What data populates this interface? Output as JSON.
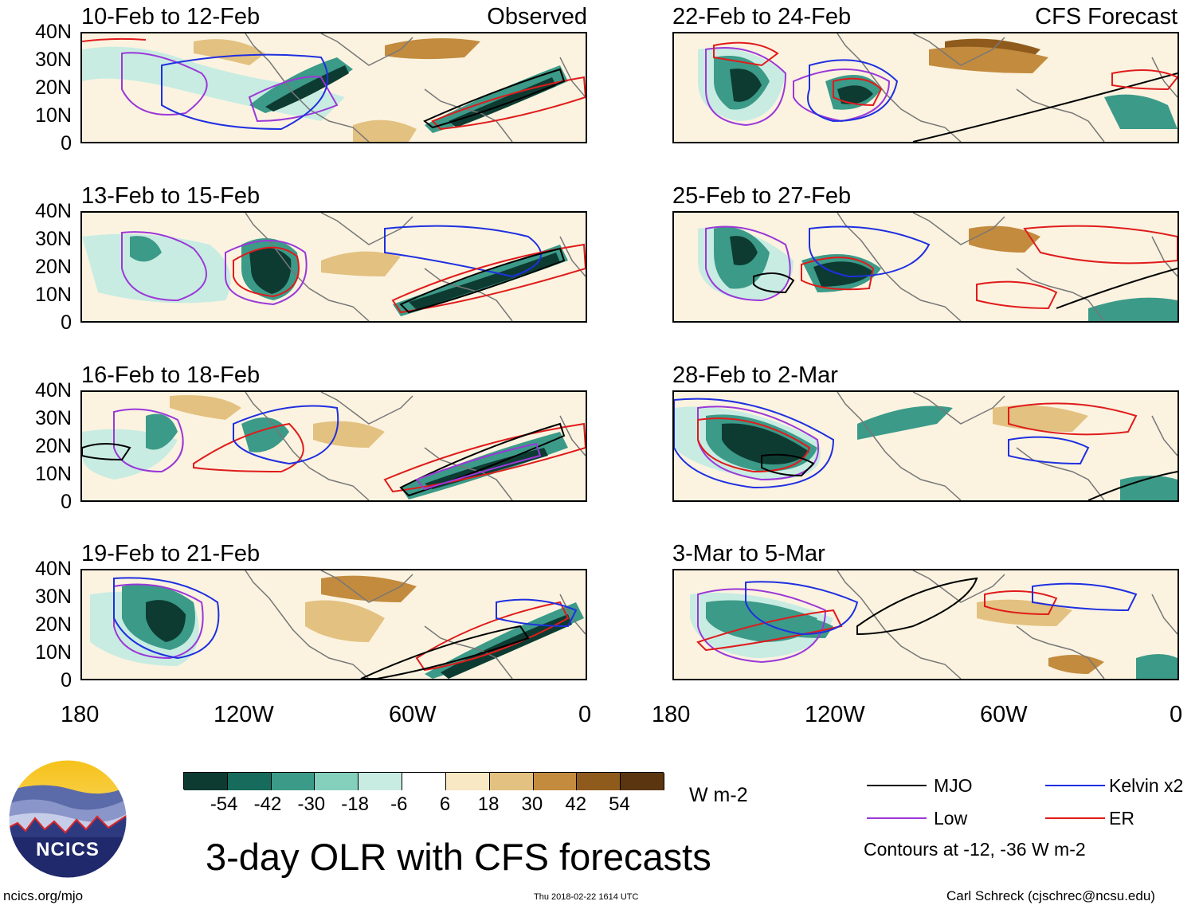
{
  "panels_left": [
    {
      "title": "10-Feb to 12-Feb",
      "tag": "Observed"
    },
    {
      "title": "13-Feb to 15-Feb",
      "tag": ""
    },
    {
      "title": "16-Feb to 18-Feb",
      "tag": ""
    },
    {
      "title": "19-Feb to 21-Feb",
      "tag": ""
    }
  ],
  "panels_right": [
    {
      "title": "22-Feb to 24-Feb",
      "tag": "CFS Forecast"
    },
    {
      "title": "25-Feb to 27-Feb",
      "tag": ""
    },
    {
      "title": "28-Feb to 2-Mar",
      "tag": ""
    },
    {
      "title": "3-Mar to 5-Mar",
      "tag": ""
    }
  ],
  "y_ticks": [
    "40N",
    "30N",
    "20N",
    "10N",
    "0"
  ],
  "x_ticks": [
    "180",
    "120W",
    "60W",
    "0"
  ],
  "colorbar": {
    "colors": [
      "#0d3b32",
      "#176b5c",
      "#3c9a88",
      "#85cfbd",
      "#c8ece2",
      "#ffffff",
      "#f8e8c3",
      "#e3c180",
      "#c38b3e",
      "#8f5b1c",
      "#5a3510"
    ],
    "labels": [
      "-54",
      "-42",
      "-30",
      "-18",
      "-6",
      "6",
      "18",
      "30",
      "42",
      "54"
    ],
    "units": "W m-2"
  },
  "legend": {
    "items": [
      {
        "label": "MJO",
        "color": "#000000"
      },
      {
        "label": "Kelvin x2",
        "color": "#1f2fe0"
      },
      {
        "label": "Low",
        "color": "#9b38d8"
      },
      {
        "label": "ER",
        "color": "#e01b1b"
      }
    ],
    "note": "Contours at -12, -36 W m-2"
  },
  "main_title": "3-day OLR with CFS forecasts",
  "logo_text": "NCICS",
  "footer": {
    "left": "ncics.org/mjo",
    "center": "Thu 2018-02-22 1614 UTC",
    "right": "Carl Schreck (cjschrec@ncsu.edu)"
  }
}
